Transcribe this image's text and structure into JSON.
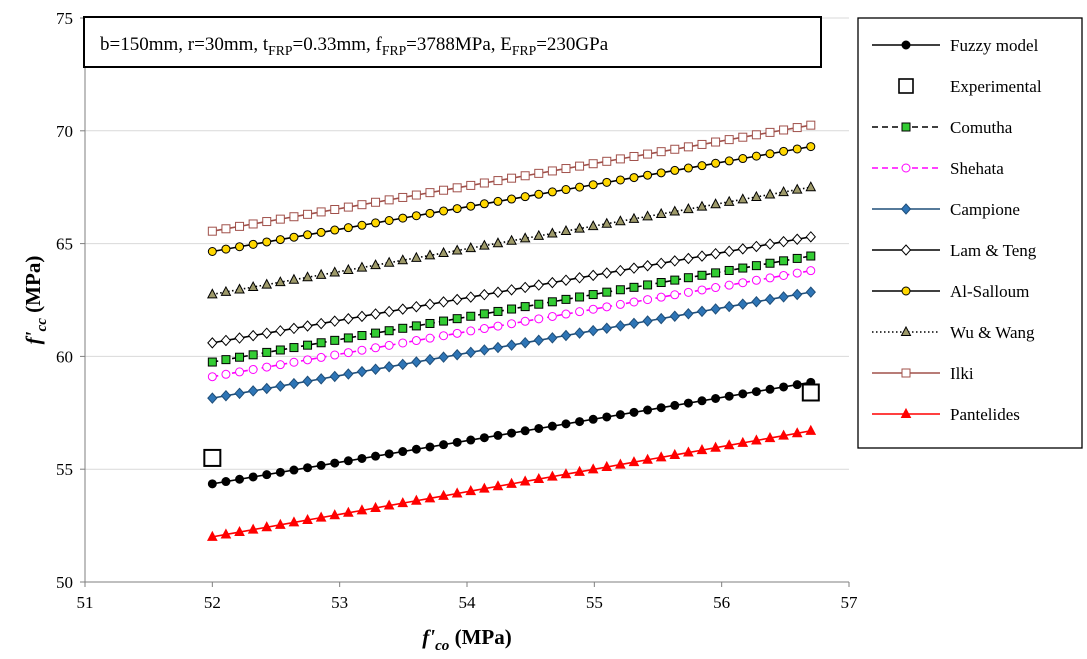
{
  "chart_data": {
    "type": "line",
    "annotation_parts": [
      {
        "t": "b=150mm, r=30mm, t"
      },
      {
        "t": "FRP",
        "sub": true
      },
      {
        "t": "=0.33mm, f"
      },
      {
        "t": "FRP",
        "sub": true
      },
      {
        "t": "=3788MPa, E"
      },
      {
        "t": "FRP",
        "sub": true
      },
      {
        "t": "=230GPa"
      }
    ],
    "xlabel_parts": [
      {
        "t": "f'",
        "italic": true
      },
      {
        "t": "co",
        "sub": true,
        "italic": true
      },
      {
        "t": " (MPa)"
      }
    ],
    "ylabel_parts": [
      {
        "t": "f'",
        "italic": true
      },
      {
        "t": "cc",
        "sub": true,
        "italic": true
      },
      {
        "t": " (MPa)"
      }
    ],
    "xlim": [
      51,
      57
    ],
    "ylim": [
      50,
      75
    ],
    "x_ticks": [
      51,
      52,
      53,
      54,
      55,
      56,
      57
    ],
    "y_ticks": [
      50,
      55,
      60,
      65,
      70,
      75
    ],
    "grid": "horizontal",
    "legend_position": "right",
    "series": [
      {
        "name": "Fuzzy model",
        "x_range": [
          52,
          56.7
        ],
        "y_range": [
          54.35,
          58.85
        ],
        "n": 45,
        "color": "#000000",
        "line": "solid",
        "marker": "circle",
        "marker_fill": "#000000",
        "marker_stroke": "#000000"
      },
      {
        "name": "Experimental",
        "points": [
          [
            52,
            55.5
          ],
          [
            56.7,
            58.4
          ]
        ],
        "color": "#000000",
        "line": "none",
        "marker": "square-open",
        "marker_fill": "#ffffff",
        "marker_stroke": "#000000"
      },
      {
        "name": "Comutha",
        "x_range": [
          52,
          56.7
        ],
        "y_range": [
          59.75,
          64.45
        ],
        "n": 45,
        "color": "#000000",
        "line": "dashed",
        "marker": "square",
        "marker_fill": "#33cc33",
        "marker_stroke": "#000000"
      },
      {
        "name": "Shehata",
        "x_range": [
          52,
          56.7
        ],
        "y_range": [
          59.1,
          63.8
        ],
        "n": 45,
        "color": "#ff00ff",
        "line": "dashed",
        "marker": "circle-open",
        "marker_fill": "#ffffff",
        "marker_stroke": "#ff00ff"
      },
      {
        "name": "Campione",
        "x_range": [
          52,
          56.7
        ],
        "y_range": [
          58.15,
          62.85
        ],
        "n": 45,
        "color": "#1f4e79",
        "line": "solid",
        "marker": "diamond",
        "marker_fill": "#2e75b6",
        "marker_stroke": "#1f4e79"
      },
      {
        "name": "Lam & Teng",
        "x_range": [
          52,
          56.7
        ],
        "y_range": [
          60.6,
          65.3
        ],
        "n": 45,
        "color": "#000000",
        "line": "solid",
        "marker": "diamond-open",
        "marker_fill": "#ffffff",
        "marker_stroke": "#000000"
      },
      {
        "name": "Al-Salloum",
        "x_range": [
          52,
          56.7
        ],
        "y_range": [
          64.65,
          69.3
        ],
        "n": 45,
        "color": "#000000",
        "line": "solid",
        "marker": "circle",
        "marker_fill": "#ffd700",
        "marker_stroke": "#000000"
      },
      {
        "name": "Wu & Wang",
        "x_range": [
          52,
          56.7
        ],
        "y_range": [
          62.75,
          67.5
        ],
        "n": 45,
        "color": "#000000",
        "line": "dotted",
        "marker": "triangle",
        "marker_fill": "#9e9a6a",
        "marker_stroke": "#000000"
      },
      {
        "name": "Ilki",
        "x_range": [
          52,
          56.7
        ],
        "y_range": [
          65.55,
          70.25
        ],
        "n": 45,
        "color": "#a0504a",
        "line": "solid",
        "marker": "square-open",
        "marker_fill": "#ffffff",
        "marker_stroke": "#a0504a"
      },
      {
        "name": "Pantelides",
        "x_range": [
          52,
          56.7
        ],
        "y_range": [
          52.0,
          56.7
        ],
        "n": 45,
        "color": "#ff0000",
        "line": "solid",
        "marker": "triangle",
        "marker_fill": "#ff0000",
        "marker_stroke": "#ff0000"
      }
    ]
  }
}
